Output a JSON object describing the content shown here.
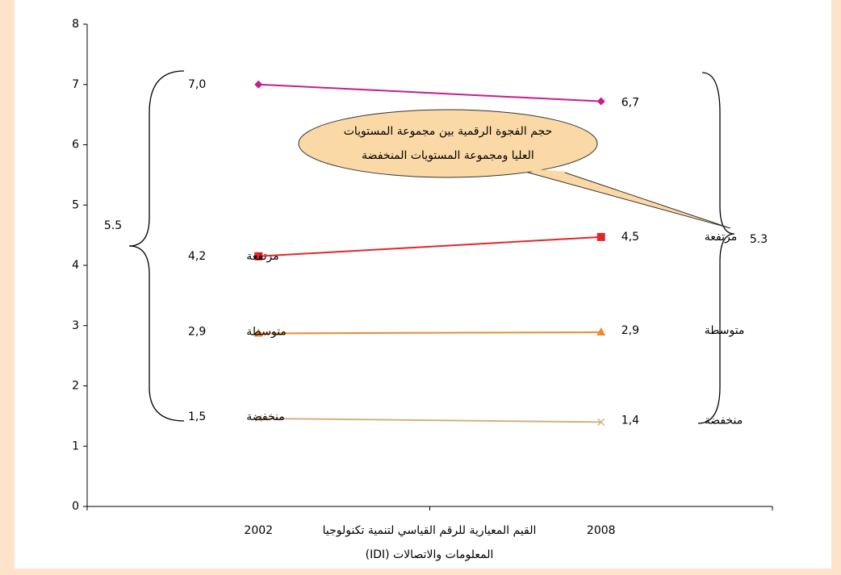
{
  "chart_data": {
    "type": "line",
    "categories": [
      "2002",
      "2008"
    ],
    "xlabel": [
      "القيم المعيارية للرقم القياسي لتنمية تكنولوجيا",
      "المعلومات والاتصالات (IDI)"
    ],
    "ylim": [
      0,
      8
    ],
    "yticks": [
      0,
      1,
      2,
      3,
      4,
      5,
      6,
      7,
      8
    ],
    "series": [
      {
        "color": "#c81d8c",
        "marker": "diamond",
        "values": [
          7.0,
          6.72
        ],
        "value_labels": [
          "7,0",
          "6,7"
        ]
      },
      {
        "name": "مرتفعة",
        "color": "#e3262b",
        "marker": "square",
        "values": [
          4.15,
          4.47
        ],
        "value_labels": [
          "4,2",
          "4,5"
        ]
      },
      {
        "name": "متوسطة",
        "color": "#f08a2a",
        "marker": "triangle",
        "values": [
          2.87,
          2.89
        ],
        "value_labels": [
          "2,9",
          "2,9"
        ]
      },
      {
        "name": "منخفضة",
        "color": "#d2b17e",
        "marker": "x",
        "values": [
          1.46,
          1.4
        ],
        "value_labels": [
          "1,5",
          "1,4"
        ]
      }
    ],
    "annotations": [
      {
        "text": "5.5"
      },
      {
        "text": "5.3"
      },
      {
        "lines": [
          "حجم الفجوة الرقمية بين مجموعة المستويات",
          "العليا ومجموعة المستويات المنخفضة"
        ]
      }
    ]
  }
}
